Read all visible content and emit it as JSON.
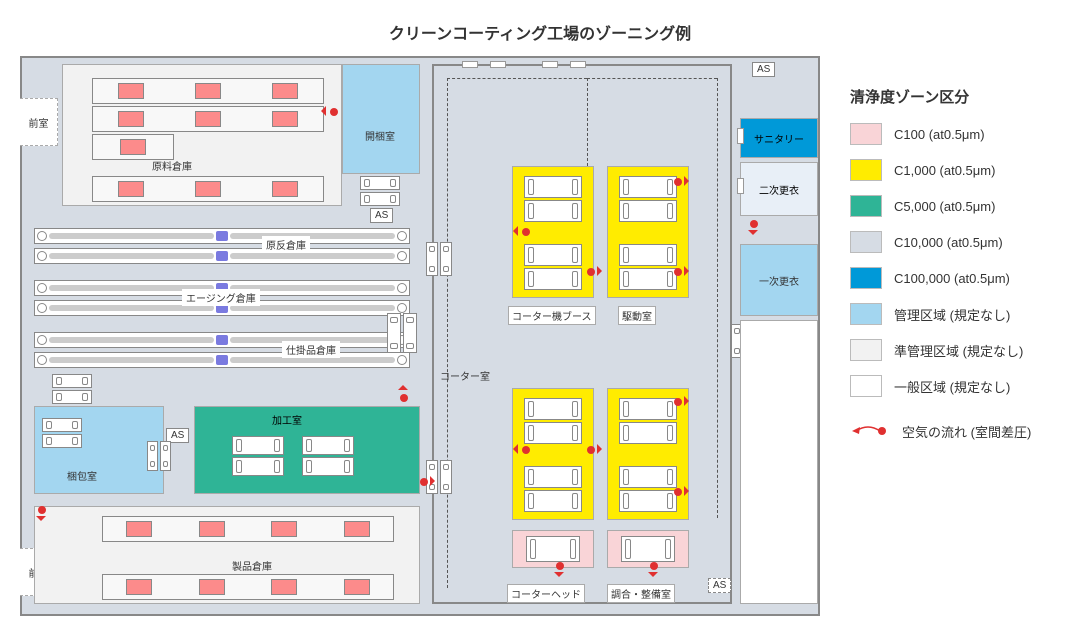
{
  "title": "クリーンコーティング工場のゾーニング例",
  "legend_title": "清浄度ゾーン区分",
  "legend": [
    {
      "label": "C100 (at0.5μm)",
      "color": "#f9d4d7"
    },
    {
      "label": "C1,000 (at0.5μm)",
      "color": "#ffec00"
    },
    {
      "label": "C5,000 (at0.5μm)",
      "color": "#2fb496"
    },
    {
      "label": "C10,000 (at0.5μm)",
      "color": "#d6dce4"
    },
    {
      "label": "C100,000 (at0.5μm)",
      "color": "#0099d8"
    },
    {
      "label": "管理区域 (規定なし)",
      "color": "#a3d6f0"
    },
    {
      "label": "準管理区域 (規定なし)",
      "color": "#f2f2f2"
    },
    {
      "label": "一般区域 (規定なし)",
      "color": "#ffffff"
    }
  ],
  "air_label": "空気の流れ (室間差圧)",
  "as_label": "AS",
  "rooms": {
    "anteroom1": "前室",
    "anteroom2": "前室",
    "raw_store": "原料倉庫",
    "unpack": "開梱室",
    "fabric": "原反倉庫",
    "aging": "エージング倉庫",
    "wip": "仕掛品倉庫",
    "process": "加工室",
    "packing": "梱包室",
    "product": "製品倉庫",
    "coater": "コーター室",
    "booth": "コーター機ブース",
    "drive": "駆動室",
    "head": "コーターヘッド",
    "maint": "調合・整備室",
    "sanitary": "サニタリー",
    "change2": "二次更衣",
    "change1": "一次更衣"
  },
  "colors": {
    "outline": "#888888",
    "dash": "#555555",
    "air": "#e03030",
    "equip_red": "#fc8b8b",
    "equip_blue": "#7a7ae0"
  }
}
